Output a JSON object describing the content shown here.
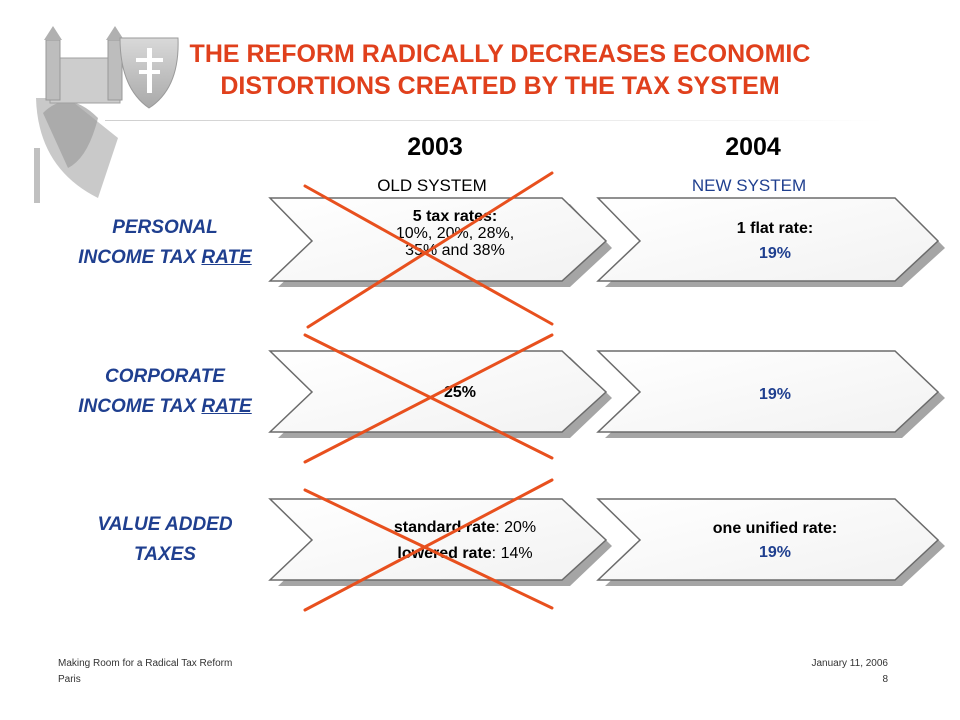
{
  "title": {
    "line1": "THE REFORM RADICALLY DECREASES ECONOMIC",
    "line2": "DISTORTIONS CREATED BY THE TAX SYSTEM"
  },
  "columns": [
    {
      "year": "2003",
      "system": "OLD SYSTEM"
    },
    {
      "year": "2004",
      "system": "NEW SYSTEM"
    }
  ],
  "rows": [
    {
      "label_line1": "PERSONAL",
      "label_line2_prefix": "INCOME TAX ",
      "label_line2_underlined": "RATE",
      "old": {
        "line1": "5 tax rates:",
        "line2": "10%, 20%, 28%,",
        "line3": "35% and 38%"
      },
      "new": {
        "line1": "1 flat rate:",
        "line2": "19%"
      }
    },
    {
      "label_line1": "CORPORATE",
      "label_line2_prefix": "INCOME TAX ",
      "label_line2_underlined": "RATE",
      "old": {
        "line1": "25%"
      },
      "new": {
        "line1": "19%"
      }
    },
    {
      "label_line1": "VALUE ADDED",
      "label_line2": "TAXES",
      "old": {
        "line1_bold": "standard rate",
        "line1_rest": ": 20%",
        "line2_bold": "lowered rate",
        "line2_rest": ": 14%"
      },
      "new": {
        "line1": "one unified rate:",
        "line2": "19%"
      }
    }
  ],
  "footer": {
    "left_line1": "Making Room for a Radical Tax Reform",
    "left_line2": "Paris",
    "right_line1": "January 11, 2006",
    "right_line2": "8"
  },
  "colors": {
    "title": "#e0401c",
    "label": "#1f3f8f",
    "cross": "#e8501e",
    "new_value": "#1f3f8f"
  }
}
